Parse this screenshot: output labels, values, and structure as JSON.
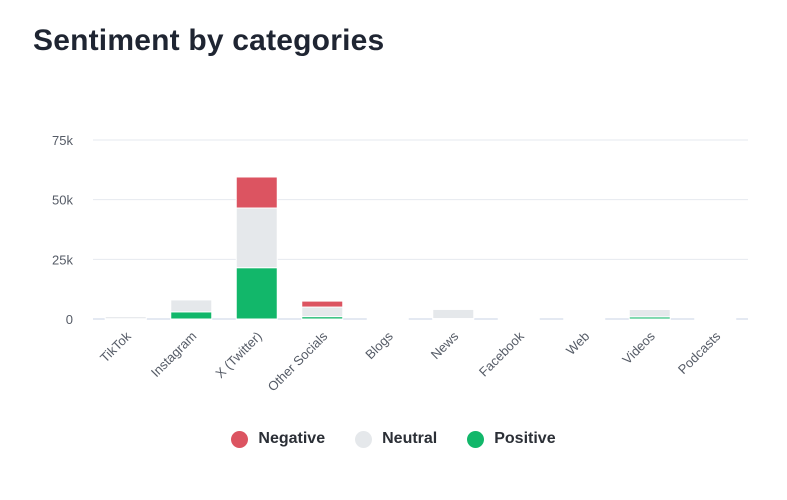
{
  "title": "Sentiment by categories",
  "chart_data": {
    "type": "bar",
    "stacked": true,
    "categories": [
      "TikTok",
      "Instagram",
      "X (Twitter)",
      "Other Socials",
      "Blogs",
      "News",
      "Facebook",
      "Web",
      "Videos",
      "Podcasts"
    ],
    "series": [
      {
        "name": "Negative",
        "color": "#dc5461",
        "values": [
          0,
          0,
          13000,
          2500,
          0,
          0,
          0,
          0,
          200,
          0
        ]
      },
      {
        "name": "Neutral",
        "color": "#e5e8eb",
        "values": [
          900,
          5000,
          25000,
          4000,
          200,
          3800,
          150,
          200,
          3300,
          300
        ]
      },
      {
        "name": "Positive",
        "color": "#12b76a",
        "values": [
          100,
          3000,
          21500,
          1000,
          0,
          200,
          0,
          0,
          900,
          0
        ]
      }
    ],
    "yticks": [
      "0",
      "25k",
      "50k",
      "75k"
    ],
    "ylim": [
      0,
      75000
    ],
    "grid": true,
    "legend_position": "bottom-center"
  }
}
